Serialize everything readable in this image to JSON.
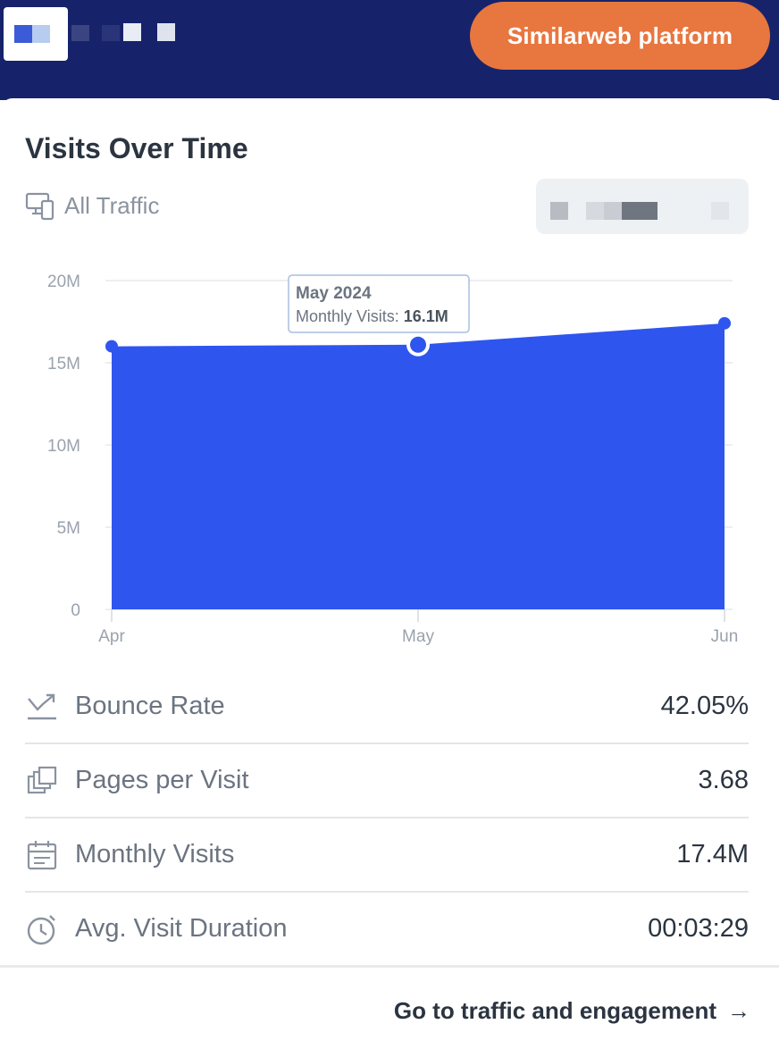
{
  "header": {
    "cta_label": "Similarweb platform"
  },
  "card": {
    "title": "Visits Over Time",
    "traffic_filter": "All Traffic"
  },
  "chart_data": {
    "type": "area",
    "categories": [
      "Apr",
      "May",
      "Jun"
    ],
    "values": [
      16.0,
      16.1,
      17.4
    ],
    "y_ticks": [
      "0",
      "5M",
      "10M",
      "15M",
      "20M"
    ],
    "ylim": [
      0,
      20
    ],
    "grid": true,
    "highlighted_index": 1,
    "tooltip": {
      "title": "May 2024",
      "label": "Monthly Visits:",
      "value": "16.1M"
    },
    "fill_color": "#2f55ef"
  },
  "metrics": [
    {
      "icon": "bounce-rate-icon",
      "label": "Bounce Rate",
      "value": "42.05%"
    },
    {
      "icon": "pages-icon",
      "label": "Pages per Visit",
      "value": "3.68"
    },
    {
      "icon": "calendar-icon",
      "label": "Monthly Visits",
      "value": "17.4M"
    },
    {
      "icon": "timer-icon",
      "label": "Avg. Visit Duration",
      "value": "00:03:29"
    }
  ],
  "footer": {
    "link_label": "Go to traffic and engagement",
    "arrow": "→"
  }
}
